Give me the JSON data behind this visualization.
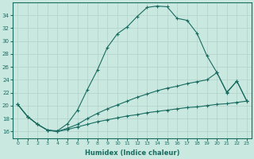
{
  "xlabel": "Humidex (Indice chaleur)",
  "ylabel": "",
  "bg_color": "#c8e8e0",
  "grid_color": "#b0d0c8",
  "line_color": "#1a6b60",
  "xlim": [
    -0.5,
    23.5
  ],
  "ylim": [
    15.0,
    36.0
  ],
  "xticks": [
    0,
    1,
    2,
    3,
    4,
    5,
    6,
    7,
    8,
    9,
    10,
    11,
    12,
    13,
    14,
    15,
    16,
    17,
    18,
    19,
    20,
    21,
    22,
    23
  ],
  "yticks": [
    16,
    18,
    20,
    22,
    24,
    26,
    28,
    30,
    32,
    34
  ],
  "line1_x": [
    0,
    1,
    2,
    3,
    4,
    5,
    6,
    7,
    8,
    9,
    10,
    11,
    12,
    13,
    14,
    15,
    16,
    17,
    18,
    19,
    20,
    21,
    22,
    23
  ],
  "line1_y": [
    20.2,
    18.3,
    17.1,
    16.2,
    16.1,
    17.2,
    19.3,
    22.5,
    25.5,
    29.0,
    31.1,
    32.2,
    33.8,
    35.2,
    35.4,
    35.3,
    33.5,
    33.2,
    31.2,
    27.7,
    25.1,
    22.1,
    23.8,
    20.7
  ],
  "line2_x": [
    0,
    1,
    2,
    3,
    4,
    5,
    6,
    7,
    8,
    9,
    10,
    11,
    12,
    13,
    14,
    15,
    16,
    17,
    18,
    19,
    20,
    21,
    22,
    23
  ],
  "line2_y": [
    20.2,
    18.3,
    17.1,
    16.2,
    16.0,
    16.5,
    17.1,
    18.0,
    18.8,
    19.5,
    20.1,
    20.7,
    21.3,
    21.8,
    22.3,
    22.7,
    23.0,
    23.4,
    23.7,
    24.0,
    25.1,
    22.0,
    23.8,
    20.7
  ],
  "line3_x": [
    0,
    1,
    2,
    3,
    4,
    5,
    6,
    7,
    8,
    9,
    10,
    11,
    12,
    13,
    14,
    15,
    16,
    17,
    18,
    19,
    20,
    21,
    22,
    23
  ],
  "line3_y": [
    20.2,
    18.3,
    17.1,
    16.2,
    16.0,
    16.3,
    16.7,
    17.1,
    17.5,
    17.8,
    18.1,
    18.4,
    18.6,
    18.9,
    19.1,
    19.3,
    19.5,
    19.7,
    19.8,
    20.0,
    20.2,
    20.3,
    20.5,
    20.7
  ]
}
